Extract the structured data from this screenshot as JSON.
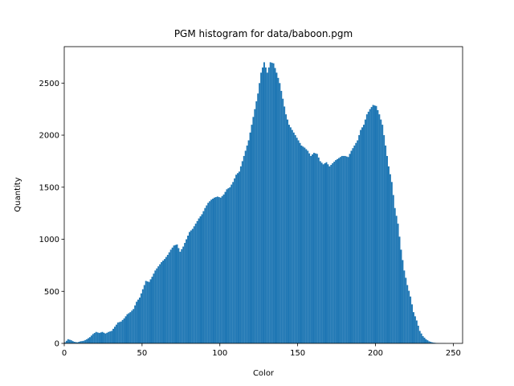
{
  "chart_data": {
    "type": "histogram",
    "title": "PGM histogram for data/baboon.pgm",
    "x_label": "Color",
    "y_label": "Quantity",
    "color": "#1f77b4",
    "bins": [
      0,
      1,
      2,
      3,
      4,
      5,
      6,
      7,
      8,
      9,
      10,
      11,
      12,
      13,
      14,
      15,
      16,
      17,
      18,
      19,
      20,
      21,
      22,
      23,
      24,
      25,
      26,
      27,
      28,
      29,
      30,
      31,
      32,
      33,
      34,
      35,
      36,
      37,
      38,
      39,
      40,
      41,
      42,
      43,
      44,
      45,
      46,
      47,
      48,
      49,
      50,
      51,
      52,
      53,
      54,
      55,
      56,
      57,
      58,
      59,
      60,
      61,
      62,
      63,
      64,
      65,
      66,
      67,
      68,
      69,
      70,
      71,
      72,
      73,
      74,
      75,
      76,
      77,
      78,
      79,
      80,
      81,
      82,
      83,
      84,
      85,
      86,
      87,
      88,
      89,
      90,
      91,
      92,
      93,
      94,
      95,
      96,
      97,
      98,
      99,
      100,
      101,
      102,
      103,
      104,
      105,
      106,
      107,
      108,
      109,
      110,
      111,
      112,
      113,
      114,
      115,
      116,
      117,
      118,
      119,
      120,
      121,
      122,
      123,
      124,
      125,
      126,
      127,
      128,
      129,
      130,
      131,
      132,
      133,
      134,
      135,
      136,
      137,
      138,
      139,
      140,
      141,
      142,
      143,
      144,
      145,
      146,
      147,
      148,
      149,
      150,
      151,
      152,
      153,
      154,
      155,
      156,
      157,
      158,
      159,
      160,
      161,
      162,
      163,
      164,
      165,
      166,
      167,
      168,
      169,
      170,
      171,
      172,
      173,
      174,
      175,
      176,
      177,
      178,
      179,
      180,
      181,
      182,
      183,
      184,
      185,
      186,
      187,
      188,
      189,
      190,
      191,
      192,
      193,
      194,
      195,
      196,
      197,
      198,
      199,
      200,
      201,
      202,
      203,
      204,
      205,
      206,
      207,
      208,
      209,
      210,
      211,
      212,
      213,
      214,
      215,
      216,
      217,
      218,
      219,
      220,
      221,
      222,
      223,
      224,
      225,
      226,
      227,
      228,
      229,
      230,
      231,
      232,
      233,
      234,
      235,
      236,
      237,
      238,
      239,
      240,
      241,
      242,
      243,
      244,
      245,
      246,
      247,
      248,
      249,
      250,
      251,
      252,
      253,
      254,
      255,
      256
    ],
    "values": [
      10,
      25,
      40,
      35,
      30,
      22,
      15,
      12,
      10,
      15,
      20,
      22,
      25,
      32,
      40,
      50,
      60,
      75,
      90,
      100,
      110,
      105,
      100,
      105,
      110,
      102,
      95,
      102,
      110,
      115,
      120,
      140,
      160,
      180,
      200,
      205,
      210,
      225,
      240,
      260,
      280,
      290,
      300,
      315,
      330,
      365,
      400,
      420,
      440,
      480,
      520,
      560,
      600,
      595,
      590,
      615,
      640,
      670,
      700,
      720,
      740,
      760,
      780,
      795,
      810,
      830,
      850,
      875,
      900,
      920,
      940,
      945,
      950,
      915,
      880,
      905,
      930,
      965,
      1000,
      1035,
      1070,
      1085,
      1100,
      1125,
      1150,
      1175,
      1200,
      1220,
      1240,
      1270,
      1300,
      1325,
      1350,
      1365,
      1380,
      1390,
      1400,
      1405,
      1410,
      1405,
      1400,
      1415,
      1430,
      1455,
      1480,
      1490,
      1500,
      1525,
      1550,
      1585,
      1620,
      1635,
      1650,
      1700,
      1750,
      1800,
      1850,
      1900,
      1950,
      2025,
      2100,
      2175,
      2250,
      2325,
      2400,
      2500,
      2600,
      2650,
      2700,
      2650,
      2600,
      2650,
      2700,
      2695,
      2690,
      2645,
      2600,
      2550,
      2500,
      2425,
      2350,
      2275,
      2200,
      2150,
      2100,
      2075,
      2050,
      2025,
      2000,
      1975,
      1950,
      1925,
      1900,
      1890,
      1880,
      1865,
      1850,
      1825,
      1800,
      1815,
      1830,
      1825,
      1820,
      1785,
      1750,
      1735,
      1720,
      1730,
      1740,
      1720,
      1700,
      1715,
      1730,
      1745,
      1760,
      1770,
      1780,
      1790,
      1800,
      1800,
      1800,
      1795,
      1790,
      1820,
      1850,
      1875,
      1900,
      1925,
      1950,
      2000,
      2050,
      2075,
      2100,
      2150,
      2200,
      2225,
      2250,
      2270,
      2290,
      2285,
      2280,
      2240,
      2200,
      2150,
      2100,
      2000,
      1900,
      1800,
      1700,
      1625,
      1550,
      1425,
      1300,
      1225,
      1150,
      1025,
      900,
      800,
      700,
      630,
      560,
      505,
      450,
      375,
      300,
      260,
      220,
      170,
      120,
      95,
      70,
      55,
      40,
      30,
      20,
      15,
      10,
      7,
      5,
      3,
      2,
      1,
      1,
      1,
      1,
      0,
      0,
      0,
      0,
      0,
      0,
      0,
      0,
      0,
      0,
      0
    ],
    "xlim": [
      0,
      256
    ],
    "ylim": [
      0,
      2850
    ],
    "xticks": [
      0,
      50,
      100,
      150,
      200,
      250
    ],
    "yticks": [
      0,
      500,
      1000,
      1500,
      2000,
      2500
    ]
  }
}
